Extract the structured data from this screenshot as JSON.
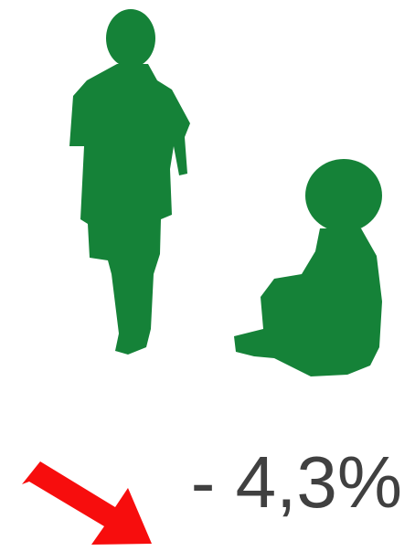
{
  "caption": {
    "text": "- 4,3%"
  }
}
